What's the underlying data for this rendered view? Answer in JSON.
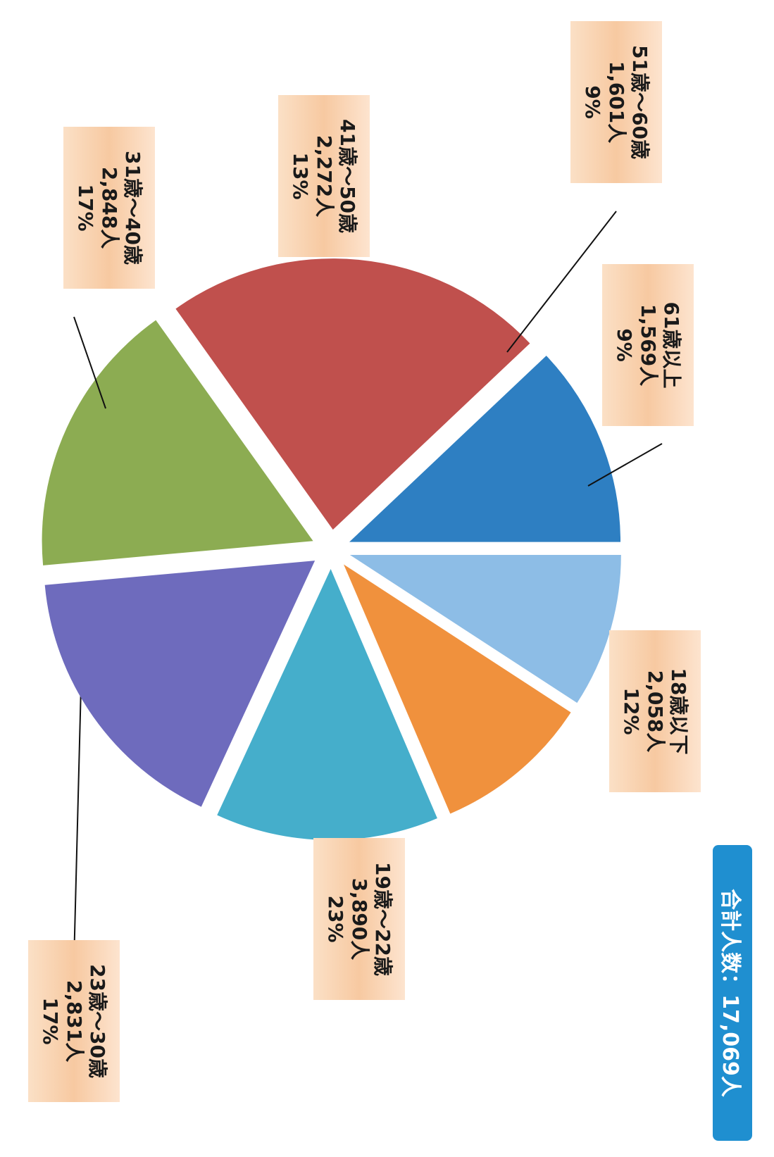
{
  "total_label": "合計人数：17,069人",
  "chart_data": {
    "type": "pie",
    "title": "",
    "total": 17069,
    "slices": [
      {
        "label": "18歳以下",
        "count_text": "2,058人",
        "value": 2058,
        "percent": 12,
        "percent_text": "12%",
        "color": "#2e7fc2"
      },
      {
        "label": "19歳～22歳",
        "count_text": "3,890人",
        "value": 3890,
        "percent": 23,
        "percent_text": "23%",
        "color": "#c0504d"
      },
      {
        "label": "23歳～30歳",
        "count_text": "2,831人",
        "value": 2831,
        "percent": 17,
        "percent_text": "17%",
        "color": "#8cac52"
      },
      {
        "label": "31歳～40歳",
        "count_text": "2,848人",
        "value": 2848,
        "percent": 17,
        "percent_text": "17%",
        "color": "#6e6bbd"
      },
      {
        "label": "41歳～50歳",
        "count_text": "2,272人",
        "value": 2272,
        "percent": 13,
        "percent_text": "13%",
        "color": "#45aecb"
      },
      {
        "label": "51歳～60歳",
        "count_text": "1,601人",
        "value": 1601,
        "percent": 9,
        "percent_text": "9%",
        "color": "#f0913d"
      },
      {
        "label": "61歳以上",
        "count_text": "1,569人",
        "value": 1569,
        "percent": 9,
        "percent_text": "9%",
        "color": "#8dbde6"
      }
    ]
  }
}
